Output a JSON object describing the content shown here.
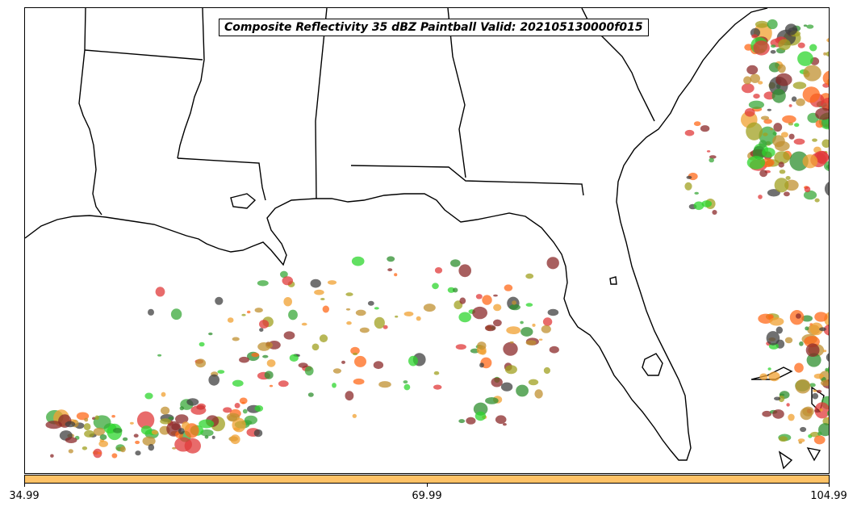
{
  "title": "Composite Reflectivity 35 dBZ Paintball Valid: 202105130000f015",
  "colorbar": {
    "color": "#ffc266",
    "ticks": [
      "34.99",
      "69.99",
      "104.99"
    ]
  },
  "paintball_colors": [
    "#e03a3a",
    "#f0a030",
    "#2f8f2f",
    "#3aa83a",
    "#a0a020",
    "#8b2a2a",
    "#404040",
    "#ff6a1a",
    "#2dd62d",
    "#c09030"
  ]
}
